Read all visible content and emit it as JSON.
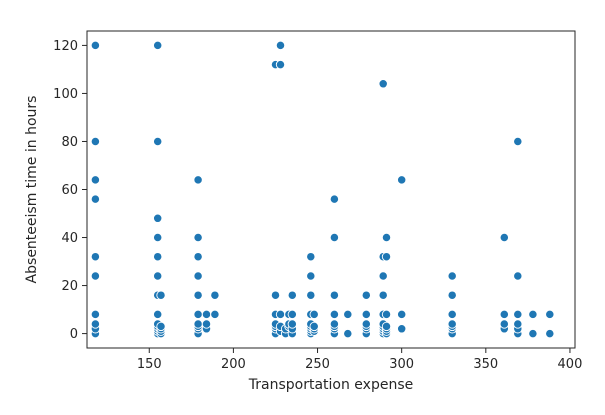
{
  "chart_data": {
    "type": "scatter",
    "xlabel": "Transportation expense",
    "ylabel": "Absenteeism time in hours",
    "xlim": [
      113,
      403
    ],
    "ylim": [
      -6,
      126
    ],
    "xticks": [
      150,
      200,
      250,
      300,
      350,
      400
    ],
    "yticks": [
      0,
      20,
      40,
      60,
      80,
      100,
      120
    ],
    "grid": false,
    "color": "#1f77b4",
    "points": [
      [
        118,
        0
      ],
      [
        118,
        2
      ],
      [
        118,
        4
      ],
      [
        118,
        8
      ],
      [
        118,
        24
      ],
      [
        118,
        32
      ],
      [
        118,
        56
      ],
      [
        118,
        64
      ],
      [
        118,
        80
      ],
      [
        118,
        120
      ],
      [
        155,
        0
      ],
      [
        155,
        1
      ],
      [
        155,
        2
      ],
      [
        155,
        3
      ],
      [
        155,
        4
      ],
      [
        155,
        8
      ],
      [
        155,
        16
      ],
      [
        155,
        24
      ],
      [
        155,
        32
      ],
      [
        155,
        40
      ],
      [
        155,
        48
      ],
      [
        155,
        80
      ],
      [
        155,
        120
      ],
      [
        157,
        0
      ],
      [
        157,
        1
      ],
      [
        157,
        2
      ],
      [
        157,
        3
      ],
      [
        157,
        16
      ],
      [
        179,
        0
      ],
      [
        179,
        2
      ],
      [
        179,
        3
      ],
      [
        179,
        4
      ],
      [
        179,
        8
      ],
      [
        179,
        16
      ],
      [
        179,
        24
      ],
      [
        179,
        32
      ],
      [
        179,
        40
      ],
      [
        179,
        64
      ],
      [
        184,
        2
      ],
      [
        184,
        4
      ],
      [
        184,
        8
      ],
      [
        189,
        8
      ],
      [
        189,
        16
      ],
      [
        225,
        0
      ],
      [
        225,
        2
      ],
      [
        225,
        3
      ],
      [
        225,
        4
      ],
      [
        225,
        8
      ],
      [
        225,
        16
      ],
      [
        225,
        112
      ],
      [
        228,
        1
      ],
      [
        228,
        3
      ],
      [
        228,
        8
      ],
      [
        228,
        112
      ],
      [
        228,
        120
      ],
      [
        231,
        0
      ],
      [
        231,
        2
      ],
      [
        233,
        3
      ],
      [
        233,
        4
      ],
      [
        233,
        8
      ],
      [
        235,
        0
      ],
      [
        235,
        2
      ],
      [
        235,
        4
      ],
      [
        235,
        8
      ],
      [
        235,
        16
      ],
      [
        246,
        0
      ],
      [
        246,
        1
      ],
      [
        246,
        2
      ],
      [
        246,
        3
      ],
      [
        246,
        4
      ],
      [
        246,
        8
      ],
      [
        246,
        16
      ],
      [
        246,
        24
      ],
      [
        246,
        32
      ],
      [
        248,
        1
      ],
      [
        248,
        2
      ],
      [
        248,
        3
      ],
      [
        248,
        8
      ],
      [
        260,
        0
      ],
      [
        260,
        2
      ],
      [
        260,
        3
      ],
      [
        260,
        4
      ],
      [
        260,
        8
      ],
      [
        260,
        16
      ],
      [
        260,
        40
      ],
      [
        260,
        56
      ],
      [
        268,
        0
      ],
      [
        268,
        8
      ],
      [
        279,
        0
      ],
      [
        279,
        2
      ],
      [
        279,
        3
      ],
      [
        279,
        4
      ],
      [
        279,
        8
      ],
      [
        279,
        16
      ],
      [
        289,
        0
      ],
      [
        289,
        1
      ],
      [
        289,
        2
      ],
      [
        289,
        3
      ],
      [
        289,
        4
      ],
      [
        289,
        8
      ],
      [
        289,
        16
      ],
      [
        289,
        24
      ],
      [
        289,
        32
      ],
      [
        289,
        104
      ],
      [
        291,
        0
      ],
      [
        291,
        1
      ],
      [
        291,
        2
      ],
      [
        291,
        3
      ],
      [
        291,
        8
      ],
      [
        291,
        32
      ],
      [
        291,
        40
      ],
      [
        300,
        2
      ],
      [
        300,
        8
      ],
      [
        300,
        64
      ],
      [
        330,
        0
      ],
      [
        330,
        2
      ],
      [
        330,
        3
      ],
      [
        330,
        4
      ],
      [
        330,
        8
      ],
      [
        330,
        16
      ],
      [
        330,
        24
      ],
      [
        361,
        2
      ],
      [
        361,
        4
      ],
      [
        361,
        8
      ],
      [
        361,
        40
      ],
      [
        369,
        0
      ],
      [
        369,
        2
      ],
      [
        369,
        4
      ],
      [
        369,
        8
      ],
      [
        369,
        24
      ],
      [
        369,
        80
      ],
      [
        378,
        0
      ],
      [
        378,
        8
      ],
      [
        388,
        0
      ],
      [
        388,
        8
      ]
    ]
  }
}
